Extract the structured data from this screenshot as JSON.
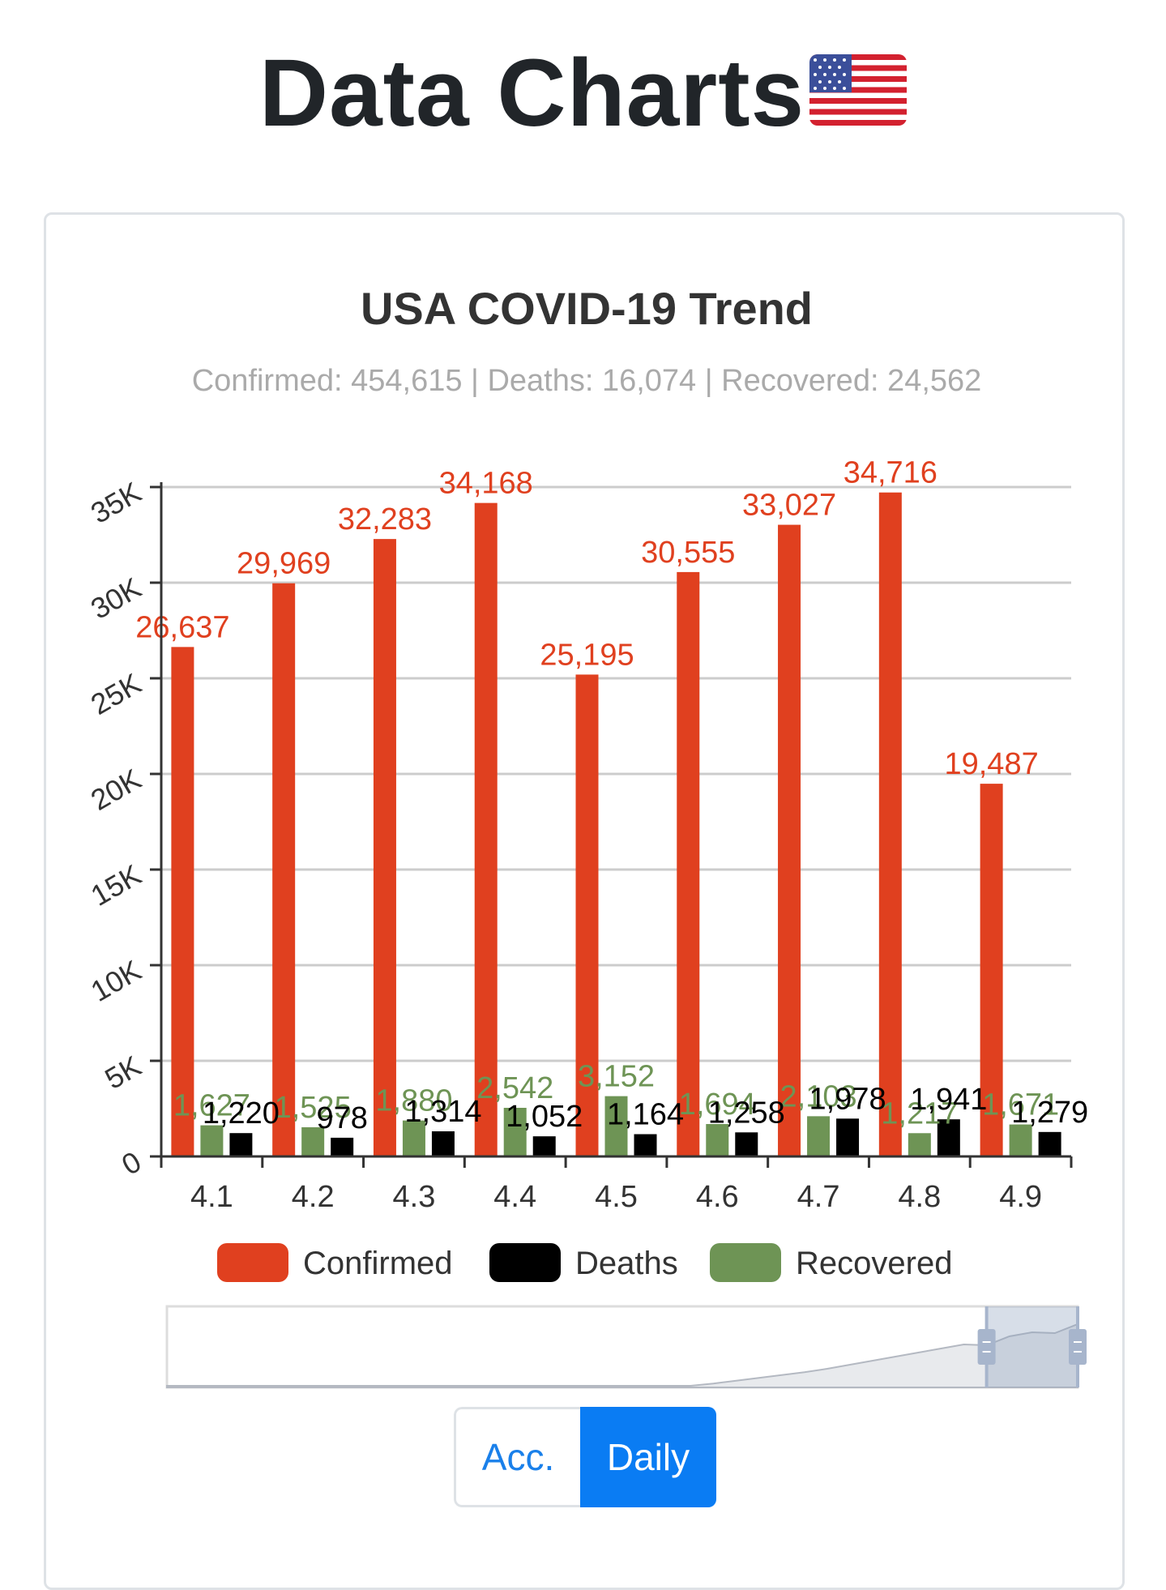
{
  "page": {
    "title": "Data Charts",
    "flag_icon": "us-flag-icon"
  },
  "chart_data": {
    "type": "bar",
    "title": "USA COVID-19 Trend",
    "subtitle": "Confirmed: 454,615 | Deaths: 16,074 | Recovered: 24,562",
    "categories": [
      "4.1",
      "4.2",
      "4.3",
      "4.4",
      "4.5",
      "4.6",
      "4.7",
      "4.8",
      "4.9"
    ],
    "series": [
      {
        "name": "Confirmed",
        "color": "#e0401f",
        "values": [
          26637,
          29969,
          32283,
          34168,
          25195,
          30555,
          33027,
          34716,
          19487
        ],
        "labels": [
          "26,637",
          "29,969",
          "32,283",
          "34,168",
          "25,195",
          "30,555",
          "33,027",
          "34,716",
          "19,487"
        ]
      },
      {
        "name": "Recovered",
        "color": "#6e9455",
        "values": [
          1627,
          1525,
          1880,
          2542,
          3152,
          1694,
          2103,
          1217,
          1671
        ],
        "labels": [
          "1,627",
          "1,525",
          "1,880",
          "2,542",
          "3,152",
          "1,694",
          "2,103",
          "1,217",
          "1,671"
        ]
      },
      {
        "name": "Deaths",
        "color": "#000000",
        "values": [
          1220,
          978,
          1314,
          1052,
          1164,
          1258,
          1978,
          1941,
          1279
        ],
        "labels": [
          "1,220",
          "978",
          "1,314",
          "1,052",
          "1,164",
          "1,258",
          "1,978",
          "1,941",
          "1,279"
        ]
      }
    ],
    "legend": [
      "Confirmed",
      "Deaths",
      "Recovered"
    ],
    "y_ticks": [
      "0",
      "5K",
      "10K",
      "15K",
      "20K",
      "25K",
      "30K",
      "35K"
    ],
    "ylim": [
      0,
      35000
    ],
    "xlabel": "",
    "ylabel": "",
    "grid": true,
    "legend_position": "bottom",
    "data_zoom": {
      "window_start_percent": 90,
      "window_end_percent": 100
    }
  },
  "toggle": {
    "acc_label": "Acc.",
    "daily_label": "Daily",
    "active": "Daily"
  }
}
